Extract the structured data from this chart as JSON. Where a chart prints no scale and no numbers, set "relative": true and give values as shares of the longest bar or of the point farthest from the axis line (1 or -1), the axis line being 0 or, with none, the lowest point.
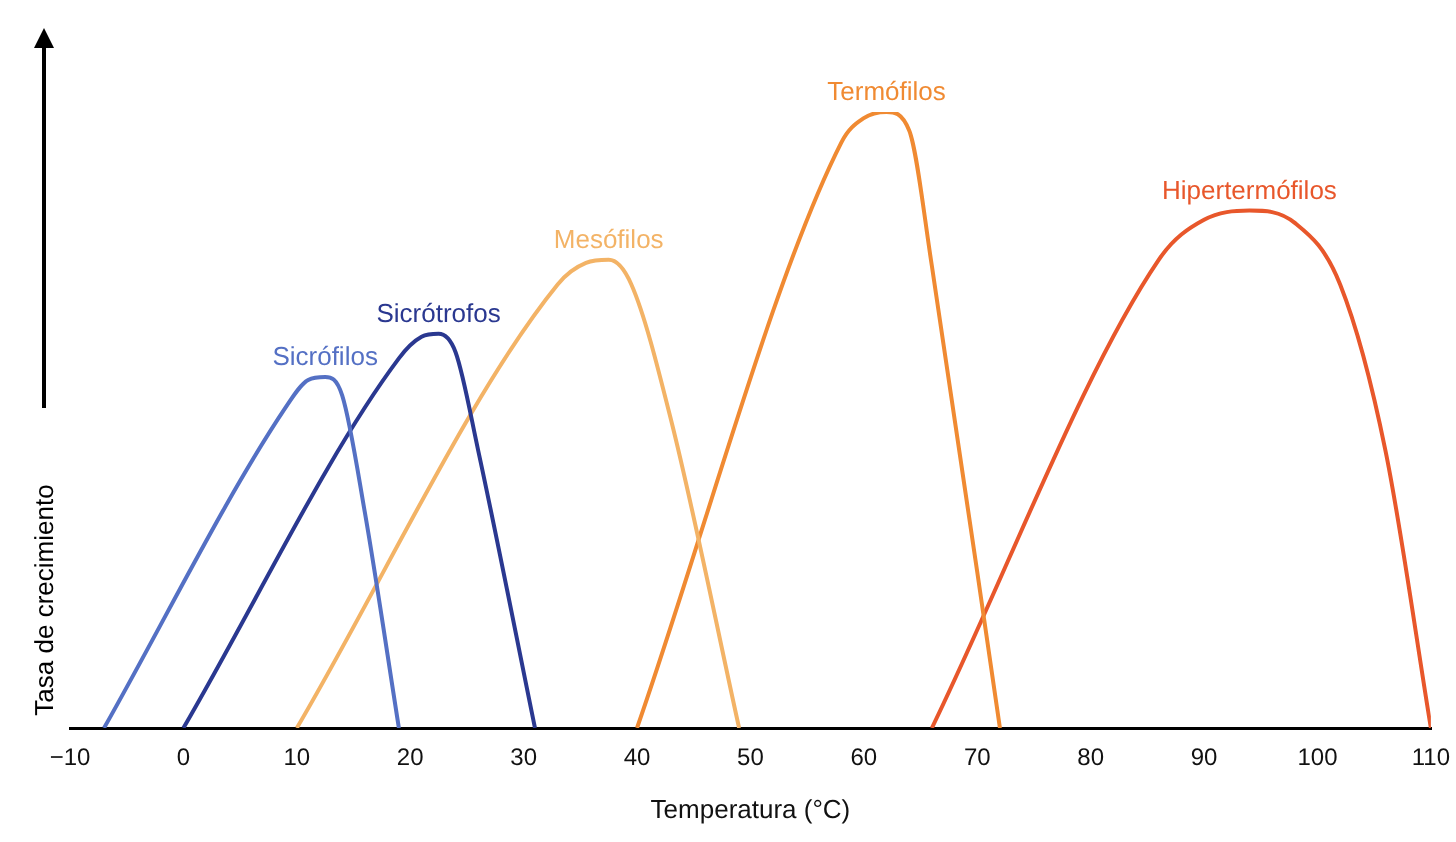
{
  "chart_data": {
    "type": "line",
    "relative": true,
    "xlabel": "Temperatura (°C)",
    "ylabel": "Tasa de crecimiento",
    "xlim": [
      -10,
      110
    ],
    "xticks": [
      -10,
      0,
      10,
      20,
      30,
      40,
      50,
      60,
      70,
      80,
      90,
      100,
      110
    ],
    "grid": false,
    "legend": false,
    "tick_labels": "x",
    "series": [
      {
        "name": "Sicrófilos",
        "color": "#5470c4",
        "x": [
          -7,
          9,
          11,
          12.5,
          14,
          16,
          19
        ],
        "values": [
          0,
          0.52,
          0.565,
          0.57,
          0.54,
          0.35,
          0
        ]
      },
      {
        "name": "Sicrótrofos",
        "color": "#2a3890",
        "x": [
          0,
          19,
          21,
          22.5,
          24,
          26,
          31
        ],
        "values": [
          0,
          0.6,
          0.635,
          0.64,
          0.61,
          0.45,
          0
        ]
      },
      {
        "name": "Mesófilos",
        "color": "#f3b366",
        "x": [
          10,
          33,
          35.5,
          37.5,
          39.5,
          43,
          49
        ],
        "values": [
          0,
          0.72,
          0.755,
          0.76,
          0.72,
          0.5,
          0
        ]
      },
      {
        "name": "Termófilos",
        "color": "#f08a32",
        "x": [
          40,
          58,
          60,
          62,
          64,
          66,
          72
        ],
        "values": [
          0,
          0.95,
          0.99,
          1,
          0.97,
          0.75,
          0
        ]
      },
      {
        "name": "Hipertermófilos",
        "color": "#e8572b",
        "x": [
          66,
          86,
          90,
          94,
          98,
          102,
          106,
          110
        ],
        "values": [
          0,
          0.76,
          0.825,
          0.84,
          0.82,
          0.72,
          0.45,
          0
        ]
      }
    ]
  }
}
